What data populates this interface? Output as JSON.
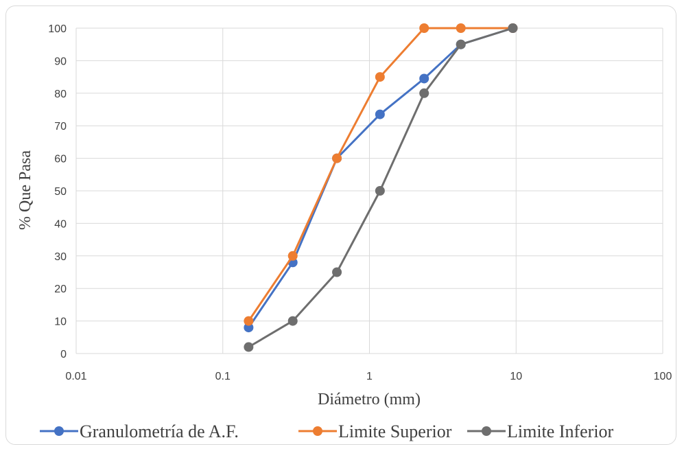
{
  "chart_data": {
    "type": "line",
    "title": "",
    "xlabel": "Diámetro (mm)",
    "ylabel": "% Que Pasa",
    "x_scale": "log",
    "xlim": [
      0.01,
      100
    ],
    "ylim": [
      0,
      100
    ],
    "x_ticks": [
      "0.01",
      "0.1",
      "1",
      "10",
      "100"
    ],
    "y_ticks": [
      "0",
      "10",
      "20",
      "30",
      "40",
      "50",
      "60",
      "70",
      "80",
      "90",
      "100"
    ],
    "grid": true,
    "legend_position": "bottom",
    "series": [
      {
        "name": "Granulometría de A.F.",
        "color": "#4472c4",
        "x": [
          0.15,
          0.3,
          0.6,
          1.18,
          2.36,
          4.2,
          9.5
        ],
        "y": [
          8,
          28,
          60,
          73.5,
          84.5,
          95,
          100
        ]
      },
      {
        "name": "Limite Superior",
        "color": "#ed7d31",
        "x": [
          0.15,
          0.3,
          0.6,
          1.18,
          2.36,
          4.2,
          9.5
        ],
        "y": [
          10,
          30,
          60,
          85,
          100,
          100,
          100
        ]
      },
      {
        "name": "Limite Inferior",
        "color": "#6e6e6e",
        "x": [
          0.15,
          0.3,
          0.6,
          1.18,
          2.36,
          4.2,
          9.5
        ],
        "y": [
          2,
          10,
          25,
          50,
          80,
          95,
          100
        ]
      }
    ]
  }
}
